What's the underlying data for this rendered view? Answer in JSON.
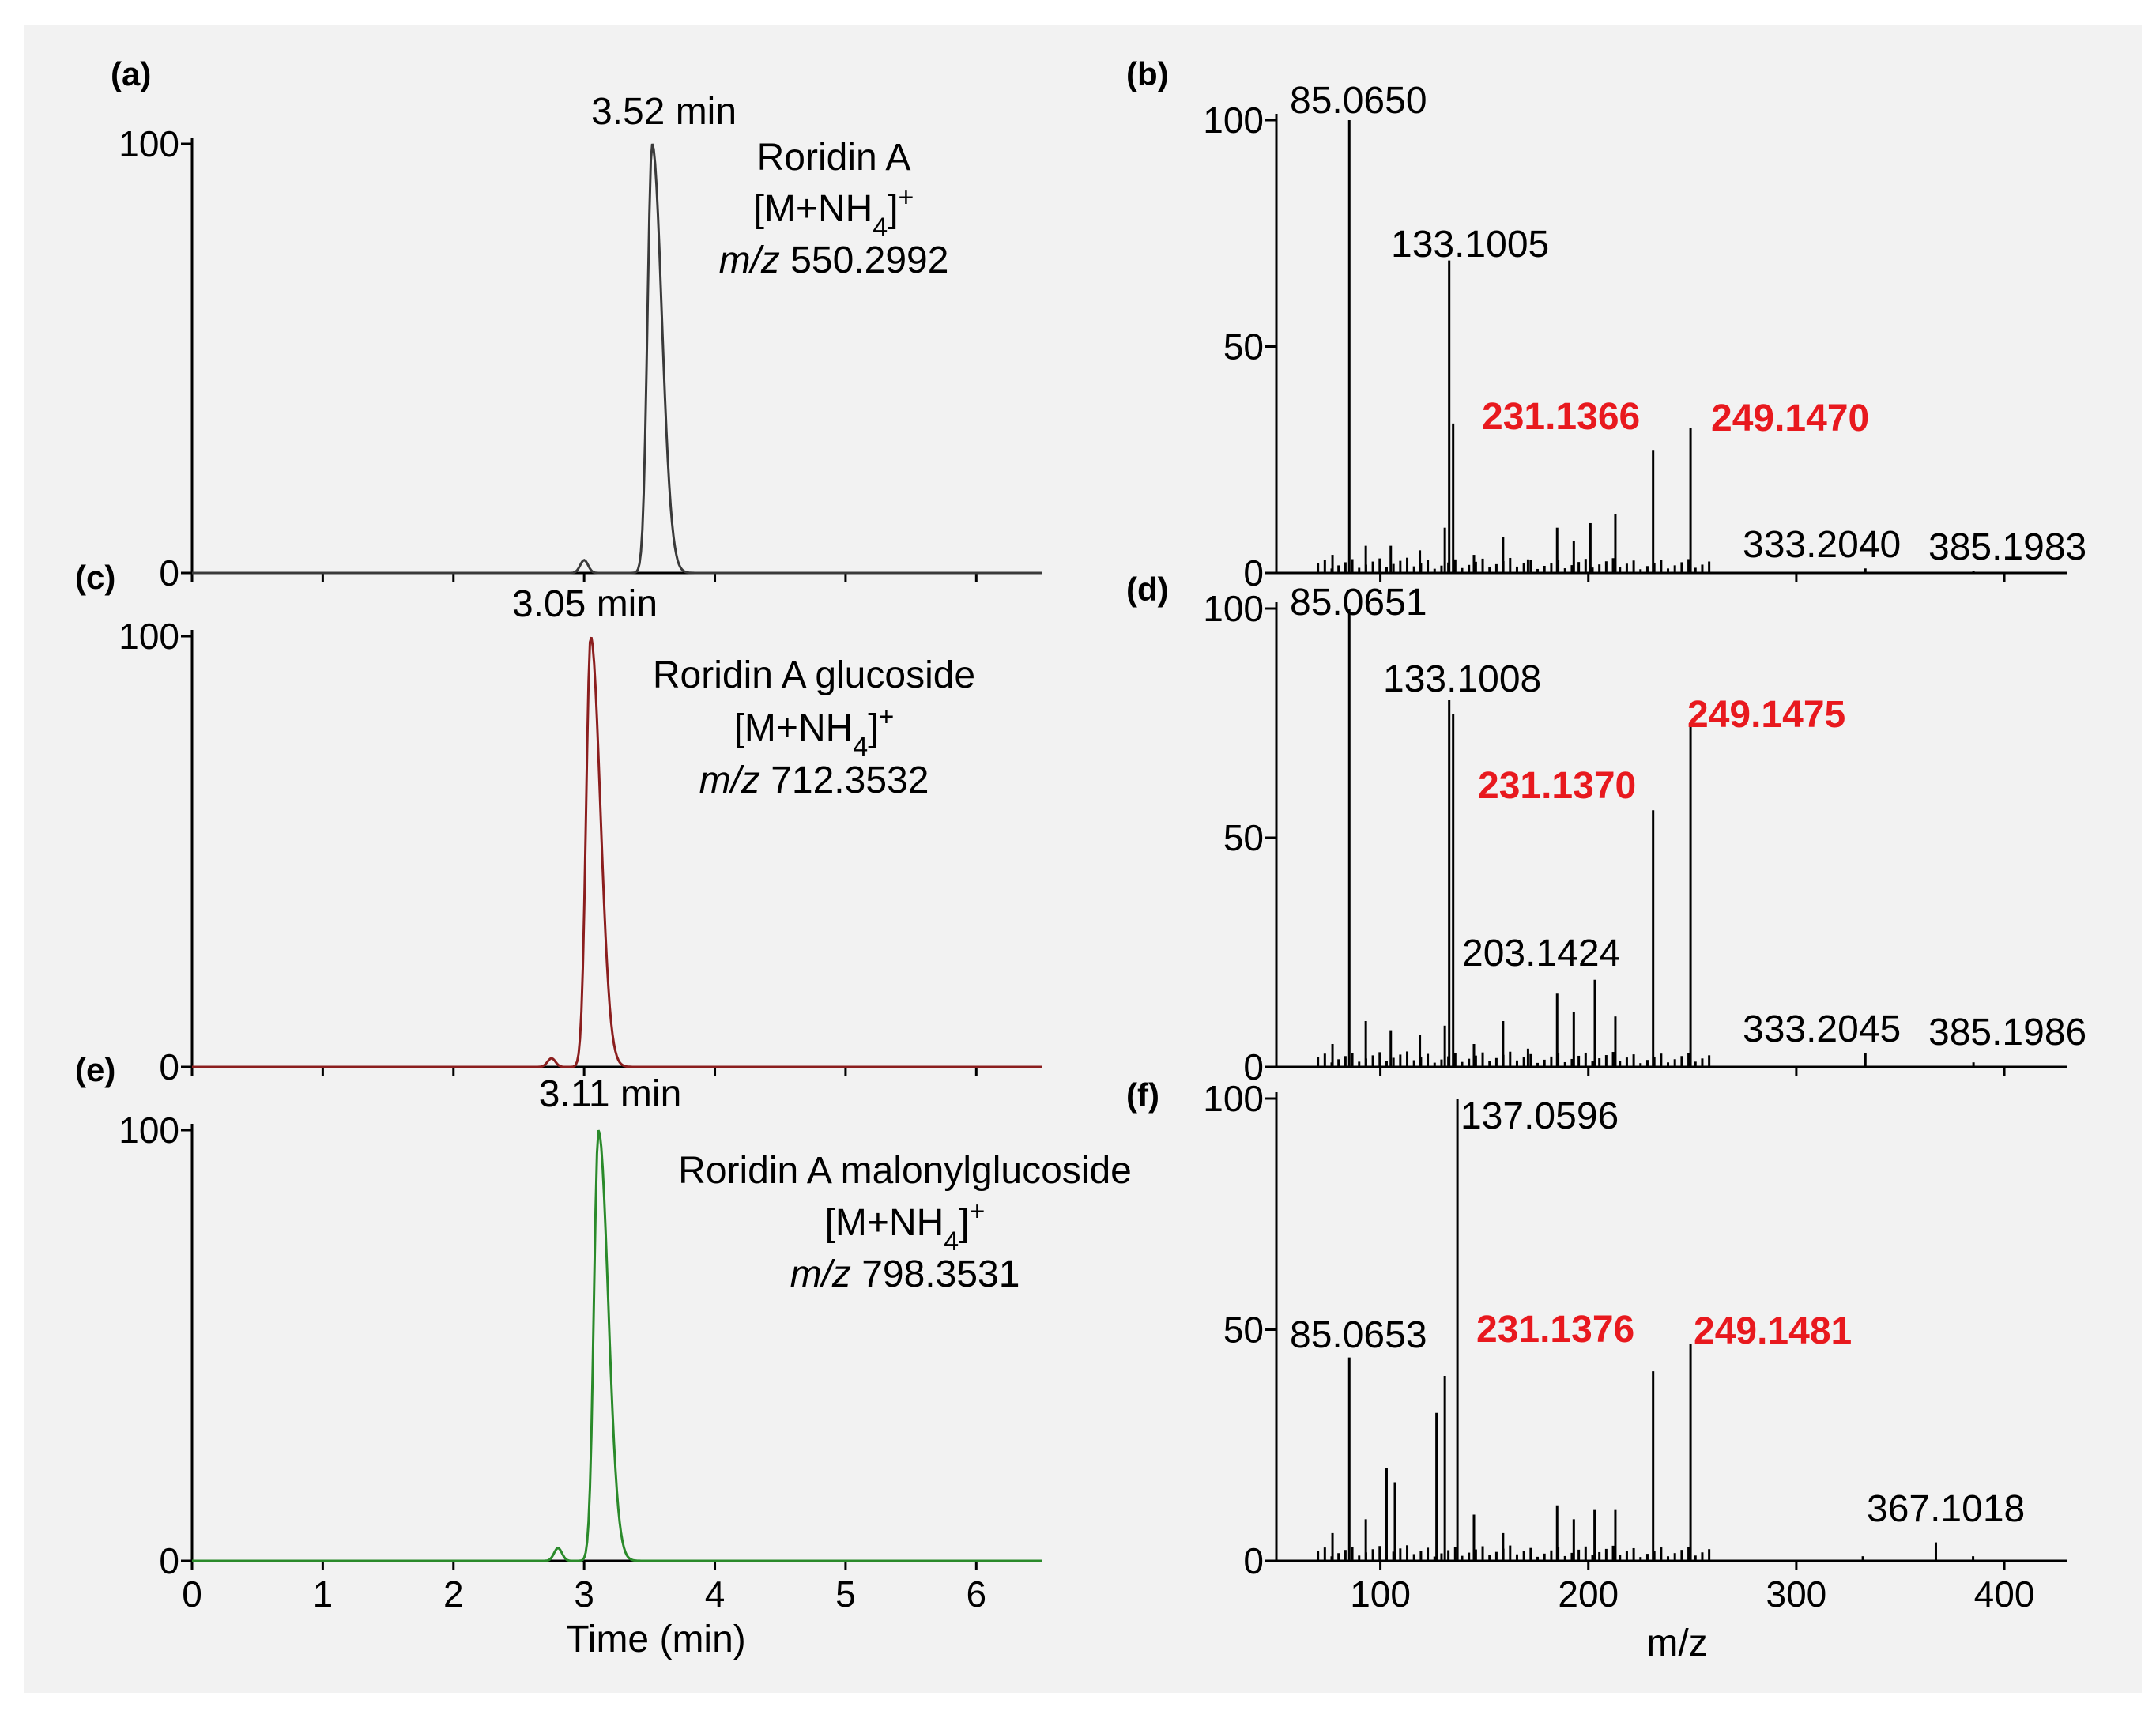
{
  "chart_data": [
    {
      "panel": "(a)",
      "type": "line",
      "ylim": [
        0,
        100
      ],
      "y_ticks": [
        "100",
        "0"
      ],
      "color": "#3a3a3a",
      "peak": {
        "rt": 3.52,
        "height": 100,
        "label": "3.52 min"
      },
      "minor_peaks": [
        {
          "rt": 3.0,
          "height": 3
        }
      ],
      "compound": "Roridin A",
      "adduct": "[M+NH4]+",
      "mz_prefix": "m/z",
      "mz_value": "550.2992"
    },
    {
      "panel": "(b)",
      "type": "bar",
      "ylim": [
        0,
        100
      ],
      "y_ticks": [
        "100",
        "50",
        "0"
      ],
      "peaks": [
        {
          "mz": 85.065,
          "i": 100,
          "label": "85.0650"
        },
        {
          "mz": 133.1005,
          "i": 69,
          "label": "133.1005"
        },
        {
          "mz": 135,
          "i": 33
        },
        {
          "mz": 231.1366,
          "i": 27,
          "label": "231.1366",
          "highlight": true
        },
        {
          "mz": 249.147,
          "i": 32,
          "label": "249.1470",
          "highlight": true
        },
        {
          "mz": 333.204,
          "i": 1,
          "label": "333.2040"
        },
        {
          "mz": 385.1983,
          "i": 0.5,
          "label": "385.1983"
        },
        {
          "mz": 77,
          "i": 4
        },
        {
          "mz": 93,
          "i": 6
        },
        {
          "mz": 105,
          "i": 6
        },
        {
          "mz": 119,
          "i": 5
        },
        {
          "mz": 131,
          "i": 10
        },
        {
          "mz": 145,
          "i": 4
        },
        {
          "mz": 159,
          "i": 8
        },
        {
          "mz": 171,
          "i": 3
        },
        {
          "mz": 185,
          "i": 10
        },
        {
          "mz": 193,
          "i": 7
        },
        {
          "mz": 201,
          "i": 11
        },
        {
          "mz": 213,
          "i": 13
        }
      ]
    },
    {
      "panel": "(c)",
      "type": "line",
      "ylim": [
        0,
        100
      ],
      "y_ticks": [
        "100",
        "0"
      ],
      "color": "#8b1e1e",
      "peak": {
        "rt": 3.05,
        "height": 100,
        "label": "3.05 min"
      },
      "minor_peaks": [
        {
          "rt": 2.75,
          "height": 2
        }
      ],
      "compound": "Roridin A glucoside",
      "adduct": "[M+NH4]+",
      "mz_prefix": "m/z",
      "mz_value": "712.3532"
    },
    {
      "panel": "(d)",
      "type": "bar",
      "ylim": [
        0,
        100
      ],
      "y_ticks": [
        "100",
        "50",
        "0"
      ],
      "peaks": [
        {
          "mz": 85.0651,
          "i": 100,
          "label": "85.0651"
        },
        {
          "mz": 133.1008,
          "i": 80,
          "label": "133.1008"
        },
        {
          "mz": 135,
          "i": 77
        },
        {
          "mz": 231.137,
          "i": 56,
          "label": "231.1370",
          "highlight": true
        },
        {
          "mz": 249.1475,
          "i": 75,
          "label": "249.1475",
          "highlight": true
        },
        {
          "mz": 203.1424,
          "i": 19,
          "label": "203.1424"
        },
        {
          "mz": 333.2045,
          "i": 3,
          "label": "333.2045"
        },
        {
          "mz": 385.1986,
          "i": 1,
          "label": "385.1986"
        },
        {
          "mz": 77,
          "i": 5
        },
        {
          "mz": 93,
          "i": 10
        },
        {
          "mz": 105,
          "i": 8
        },
        {
          "mz": 119,
          "i": 7
        },
        {
          "mz": 131,
          "i": 9
        },
        {
          "mz": 145,
          "i": 5
        },
        {
          "mz": 159,
          "i": 10
        },
        {
          "mz": 171,
          "i": 4
        },
        {
          "mz": 185,
          "i": 16
        },
        {
          "mz": 193,
          "i": 12
        },
        {
          "mz": 213,
          "i": 11
        }
      ]
    },
    {
      "panel": "(e)",
      "type": "line",
      "ylim": [
        0,
        100
      ],
      "xlim": [
        0,
        6.5
      ],
      "x_ticks": [
        "0",
        "1",
        "2",
        "3",
        "4",
        "5",
        "6"
      ],
      "y_ticks": [
        "100",
        "0"
      ],
      "color": "#2a8a2a",
      "peak": {
        "rt": 3.11,
        "height": 100,
        "label": "3.11 min"
      },
      "minor_peaks": [
        {
          "rt": 2.8,
          "height": 3
        }
      ],
      "compound": "Roridin A malonylglucoside",
      "adduct": "[M+NH4]+",
      "mz_prefix": "m/z",
      "mz_value": "798.3531",
      "xlabel": "Time (min)"
    },
    {
      "panel": "(f)",
      "type": "bar",
      "ylim": [
        0,
        100
      ],
      "xlim": [
        50,
        430
      ],
      "x_ticks": [
        "100",
        "200",
        "300",
        "400"
      ],
      "y_ticks": [
        "100",
        "50",
        "0"
      ],
      "peaks": [
        {
          "mz": 137.0596,
          "i": 100,
          "label": "137.0596"
        },
        {
          "mz": 85.0653,
          "i": 44,
          "label": "85.0653"
        },
        {
          "mz": 231.1376,
          "i": 41,
          "label": "231.1376",
          "highlight": true
        },
        {
          "mz": 249.1481,
          "i": 47,
          "label": "249.1481",
          "highlight": true
        },
        {
          "mz": 367.1018,
          "i": 4,
          "label": "367.1018"
        },
        {
          "mz": 103,
          "i": 20
        },
        {
          "mz": 107,
          "i": 17
        },
        {
          "mz": 127,
          "i": 32
        },
        {
          "mz": 131,
          "i": 40
        },
        {
          "mz": 77,
          "i": 6
        },
        {
          "mz": 93,
          "i": 9
        },
        {
          "mz": 145,
          "i": 10
        },
        {
          "mz": 159,
          "i": 6
        },
        {
          "mz": 185,
          "i": 12
        },
        {
          "mz": 193,
          "i": 9
        },
        {
          "mz": 203,
          "i": 11
        },
        {
          "mz": 213,
          "i": 11
        },
        {
          "mz": 332,
          "i": 1
        },
        {
          "mz": 385,
          "i": 1
        }
      ],
      "xlabel": "m/z"
    }
  ]
}
